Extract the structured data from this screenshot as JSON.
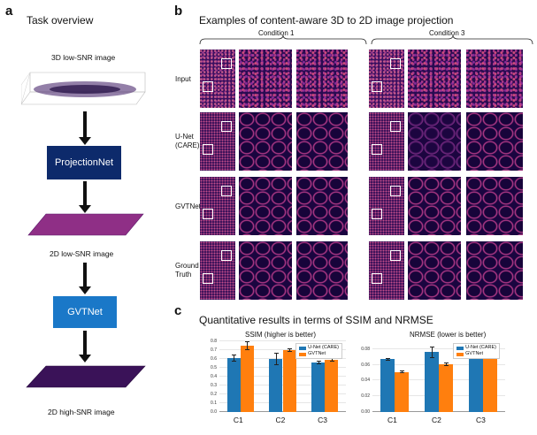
{
  "panel_a": {
    "letter": "a",
    "title": "Task overview",
    "label_3d": "3D low-SNR image",
    "box1": "ProjectionNet",
    "label_2d_low": "2D low-SNR image",
    "box2": "GVTNet",
    "label_2d_high": "2D high-SNR image",
    "colors": {
      "projectionnet": "#0d2a6b",
      "gvtnet": "#1a78c8"
    }
  },
  "panel_b": {
    "letter": "b",
    "title": "Examples of content-aware 3D to 2D image projection",
    "condition1": "Condition 1",
    "condition3": "Condition 3",
    "rows": [
      "Input",
      "U-Net\n(CARE)",
      "GVTNet",
      "Ground\nTruth"
    ]
  },
  "panel_c": {
    "letter": "c",
    "title": "Quantitative results in terms of SSIM and NRMSE",
    "ssim_title": "SSIM (higher is better)",
    "nrmse_title": "NRMSE (lower is better)",
    "legend": [
      "U-Net (CARE)",
      "GVTNet"
    ],
    "colors": {
      "unet": "#1f77b4",
      "gvtnet": "#ff7f0e"
    }
  },
  "chart_data": [
    {
      "type": "bar",
      "title": "SSIM (higher is better)",
      "categories": [
        "C1",
        "C2",
        "C3"
      ],
      "series": [
        {
          "name": "U-Net (CARE)",
          "values": [
            0.61,
            0.6,
            0.56
          ],
          "errors": [
            0.04,
            0.07,
            0.02
          ]
        },
        {
          "name": "GVTNet",
          "values": [
            0.75,
            0.7,
            0.59
          ],
          "errors": [
            0.05,
            0.02,
            0.02
          ]
        }
      ],
      "ylim": [
        0,
        0.8
      ],
      "yticks": [
        "0.0",
        "0.1",
        "0.2",
        "0.3",
        "0.4",
        "0.5",
        "0.6",
        "0.7",
        "0.8"
      ]
    },
    {
      "type": "bar",
      "title": "NRMSE (lower is better)",
      "categories": [
        "C1",
        "C2",
        "C3"
      ],
      "series": [
        {
          "name": "U-Net (CARE)",
          "values": [
            0.067,
            0.076,
            0.081
          ],
          "errors": [
            0.002,
            0.007,
            0.003
          ]
        },
        {
          "name": "GVTNet",
          "values": [
            0.051,
            0.061,
            0.078
          ],
          "errors": [
            0.002,
            0.002,
            0.002
          ]
        }
      ],
      "ylim": [
        0,
        0.09
      ],
      "yticks": [
        "0.00",
        "0.02",
        "0.04",
        "0.06",
        "0.08"
      ]
    }
  ]
}
